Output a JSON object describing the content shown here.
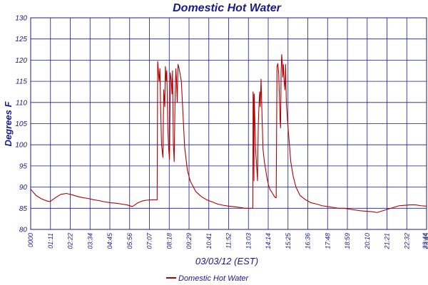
{
  "chart_data": {
    "type": "line",
    "title": "Domestic Hot Water",
    "xlabel": "03/03/12 (EST)",
    "ylabel": "Degrees F",
    "ylim": [
      80,
      130
    ],
    "yticks": [
      80,
      85,
      90,
      95,
      100,
      105,
      110,
      115,
      120,
      125,
      130
    ],
    "xlim_minutes": [
      0,
      1440
    ],
    "x_tick_labels": [
      "0000",
      "01:11",
      "02:22",
      "03:34",
      "04:45",
      "05:56",
      "07:07",
      "08:18",
      "09:29",
      "10:41",
      "11:52",
      "13:03",
      "14:14",
      "15:25",
      "16:36",
      "17:48",
      "18:59",
      "20:10",
      "21:21",
      "22:32",
      "23:44",
      "23:45"
    ],
    "grid": true,
    "legend_position": "bottom-center",
    "series": [
      {
        "name": "Domestic Hot Water",
        "color": "#b30000",
        "x_minutes": [
          0,
          20,
          40,
          60,
          71,
          90,
          110,
          130,
          150,
          170,
          190,
          210,
          230,
          250,
          270,
          290,
          310,
          330,
          350,
          370,
          390,
          405,
          420,
          440,
          460,
          462,
          463,
          467,
          470,
          473,
          476,
          481,
          484,
          488,
          490,
          493,
          495,
          497,
          499,
          502,
          505,
          508,
          511,
          514,
          516,
          519,
          522,
          525,
          528,
          530,
          533,
          536,
          540,
          548,
          555,
          560,
          570,
          580,
          600,
          620,
          640,
          660,
          680,
          700,
          720,
          750,
          780,
          800,
          808,
          809,
          810,
          812,
          813,
          815,
          818,
          822,
          825,
          828,
          830,
          833,
          835,
          838,
          841,
          845,
          850,
          855,
          860,
          865,
          870,
          880,
          886,
          891,
          892,
          893,
          896,
          899,
          902,
          905,
          907,
          909,
          911,
          913,
          915,
          917,
          919,
          922,
          925,
          927,
          930,
          935,
          940,
          946,
          955,
          965,
          980,
          1000,
          1020,
          1040,
          1060,
          1080,
          1100,
          1120,
          1140,
          1160,
          1180,
          1200,
          1220,
          1240,
          1260,
          1280,
          1300,
          1320,
          1340,
          1360,
          1380,
          1400,
          1420,
          1440
        ],
        "values": [
          89.5,
          88.0,
          87.2,
          86.7,
          86.6,
          87.5,
          88.3,
          88.5,
          88.2,
          87.8,
          87.5,
          87.3,
          87.0,
          86.8,
          86.5,
          86.3,
          86.2,
          86.0,
          85.8,
          85.4,
          86.3,
          86.7,
          86.9,
          87.0,
          87.0,
          119.7,
          119.0,
          115.0,
          118.0,
          108.0,
          100.0,
          97.0,
          113.0,
          109.0,
          118.5,
          115.0,
          117.5,
          111.0,
          104.0,
          99.0,
          96.5,
          117.0,
          115.5,
          112.0,
          117.5,
          100.0,
          96.0,
          110.0,
          118.0,
          116.0,
          110.0,
          119.0,
          118.0,
          115.0,
          106.0,
          99.5,
          94.0,
          91.5,
          89.0,
          87.8,
          87.0,
          86.5,
          86.0,
          85.7,
          85.5,
          85.3,
          85.0,
          85.0,
          85.0,
          112.5,
          111.0,
          91.5,
          112.0,
          107.0,
          99.0,
          95.0,
          91.5,
          105.0,
          108.5,
          112.5,
          109.0,
          115.5,
          108.0,
          99.0,
          96.0,
          94.0,
          92.0,
          90.5,
          89.5,
          88.5,
          87.8,
          87.5,
          87.5,
          87.5,
          118.5,
          119.2,
          117.0,
          111.0,
          106.0,
          104.0,
          117.5,
          121.3,
          119.5,
          116.0,
          119.0,
          115.0,
          113.0,
          119.0,
          110.0,
          105.0,
          101.0,
          96.0,
          92.5,
          90.0,
          88.0,
          87.0,
          86.3,
          86.0,
          85.6,
          85.4,
          85.2,
          85.0,
          85.0,
          84.8,
          84.6,
          84.4,
          84.3,
          84.2,
          84.0,
          84.4,
          84.8,
          85.2,
          85.6,
          85.7,
          85.8,
          85.8,
          85.6,
          85.5
        ]
      }
    ]
  }
}
